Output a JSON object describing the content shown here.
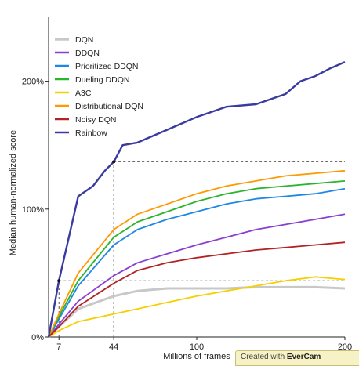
{
  "chart_data": {
    "type": "line",
    "xlabel": "Millions of frames",
    "ylabel": "Median human-normalized score",
    "xlim": [
      0,
      200
    ],
    "ylim": [
      0,
      250
    ],
    "x_ticks": [
      {
        "value": 7,
        "label": "7"
      },
      {
        "value": 44,
        "label": "44"
      },
      {
        "value": 100,
        "label": "100"
      },
      {
        "value": 200,
        "label": "200"
      }
    ],
    "y_ticks": [
      {
        "value": 0,
        "label": "0%"
      },
      {
        "value": 100,
        "label": "100%"
      },
      {
        "value": 200,
        "label": "200%"
      }
    ],
    "reference_lines": [
      {
        "kind": "vertical",
        "x": 7,
        "y_top": 44
      },
      {
        "kind": "vertical",
        "x": 44,
        "y_top": 137
      },
      {
        "kind": "horizontal",
        "y": 44,
        "x_from": 7,
        "x_to": 200
      },
      {
        "kind": "horizontal",
        "y": 137,
        "x_from": 44,
        "x_to": 200
      }
    ],
    "legend_position": "top-left",
    "grid": false,
    "series": [
      {
        "name": "DQN",
        "color": "#c8c8c8",
        "x": [
          0,
          7,
          20,
          44,
          60,
          80,
          100,
          120,
          140,
          160,
          180,
          200
        ],
        "y": [
          0,
          8,
          22,
          32,
          36,
          38,
          38,
          38,
          39,
          39,
          39,
          38
        ]
      },
      {
        "name": "DDQN",
        "color": "#8a3fd1",
        "x": [
          0,
          7,
          20,
          44,
          60,
          80,
          100,
          120,
          140,
          160,
          180,
          200
        ],
        "y": [
          0,
          10,
          28,
          48,
          58,
          65,
          72,
          78,
          84,
          88,
          92,
          96
        ]
      },
      {
        "name": "Prioritized DDQN",
        "color": "#1e88e5",
        "x": [
          0,
          7,
          20,
          44,
          60,
          80,
          100,
          120,
          140,
          160,
          180,
          200
        ],
        "y": [
          0,
          14,
          40,
          72,
          84,
          92,
          98,
          104,
          108,
          110,
          112,
          116
        ]
      },
      {
        "name": "Dueling DDQN",
        "color": "#2ab52a",
        "x": [
          0,
          7,
          20,
          44,
          60,
          80,
          100,
          120,
          140,
          160,
          180,
          200
        ],
        "y": [
          0,
          16,
          44,
          78,
          90,
          98,
          106,
          112,
          116,
          118,
          120,
          122
        ]
      },
      {
        "name": "A3C",
        "color": "#f5d000",
        "x": [
          0,
          7,
          20,
          44,
          60,
          80,
          100,
          120,
          140,
          160,
          180,
          200
        ],
        "y": [
          0,
          5,
          12,
          18,
          22,
          27,
          32,
          36,
          40,
          44,
          47,
          45
        ]
      },
      {
        "name": "Distributional DQN",
        "color": "#ff9900",
        "x": [
          0,
          7,
          20,
          44,
          60,
          80,
          100,
          120,
          140,
          160,
          180,
          200
        ],
        "y": [
          0,
          18,
          50,
          84,
          96,
          104,
          112,
          118,
          122,
          126,
          128,
          130
        ]
      },
      {
        "name": "Noisy DQN",
        "color": "#b22222",
        "x": [
          0,
          7,
          20,
          44,
          60,
          80,
          100,
          120,
          140,
          160,
          180,
          200
        ],
        "y": [
          0,
          8,
          24,
          42,
          52,
          58,
          62,
          65,
          68,
          70,
          72,
          74
        ]
      },
      {
        "name": "Rainbow",
        "color": "#3a3aa0",
        "x": [
          0,
          7,
          20,
          30,
          38,
          44,
          50,
          60,
          80,
          100,
          120,
          140,
          160,
          170,
          180,
          190,
          200
        ],
        "y": [
          0,
          44,
          110,
          118,
          130,
          137,
          150,
          152,
          162,
          172,
          180,
          182,
          190,
          200,
          204,
          210,
          215
        ]
      }
    ]
  },
  "watermark": {
    "prefix": "Created with ",
    "brand": "EverCam"
  }
}
